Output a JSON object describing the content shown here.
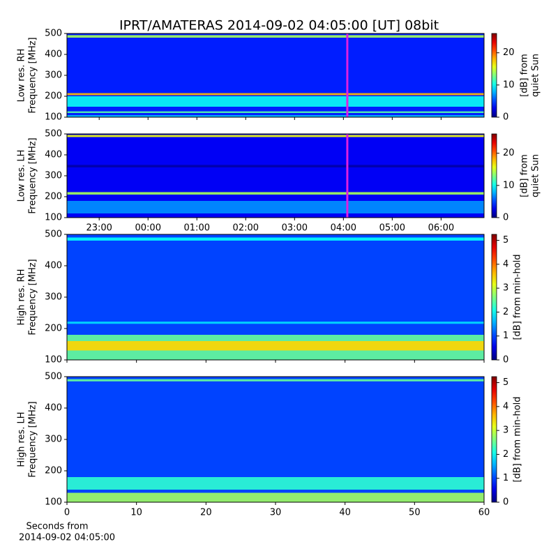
{
  "title": "IPRT/AMATERAS 2014-09-02 04:05:00 [UT]   08bit",
  "chart_data": [
    {
      "type": "spectrogram",
      "ylabel": [
        "Low res. RH",
        "Frequency [MHz]"
      ],
      "xlim": [
        22.34,
        30.88
      ],
      "xticks": [
        {
          "value": 23,
          "label": "23:00"
        },
        {
          "value": 24,
          "label": "00:00"
        },
        {
          "value": 25,
          "label": "01:00"
        },
        {
          "value": 26,
          "label": "02:00"
        },
        {
          "value": 27,
          "label": "03:00"
        },
        {
          "value": 28,
          "label": "04:00"
        },
        {
          "value": 29,
          "label": "05:00"
        },
        {
          "value": 30,
          "label": "06:00"
        }
      ],
      "xtick_labels": false,
      "ylim": [
        100,
        500
      ],
      "yticks": [
        100,
        200,
        300,
        400,
        500
      ],
      "clim": [
        0,
        26
      ],
      "cticks": [
        0,
        10,
        20
      ],
      "clabel": [
        "[dB] from",
        "quiet Sun"
      ],
      "colormap": "jet",
      "background": 4,
      "bands": [
        {
          "from": 100,
          "to": 110,
          "level": 8
        },
        {
          "from": 120,
          "to": 128,
          "level": 12
        },
        {
          "from": 150,
          "to": 200,
          "level": 10
        },
        {
          "from": 205,
          "to": 215,
          "level": 18
        },
        {
          "from": 480,
          "to": 492,
          "level": 14
        }
      ],
      "cursor": {
        "x": 28.08,
        "color": "#e020e0"
      }
    },
    {
      "type": "spectrogram",
      "ylabel": [
        "Low res. LH",
        "Frequency [MHz]"
      ],
      "xlim": [
        22.34,
        30.88
      ],
      "xticks": [
        {
          "value": 23,
          "label": "23:00"
        },
        {
          "value": 24,
          "label": "00:00"
        },
        {
          "value": 25,
          "label": "01:00"
        },
        {
          "value": 26,
          "label": "02:00"
        },
        {
          "value": 27,
          "label": "03:00"
        },
        {
          "value": 28,
          "label": "04:00"
        },
        {
          "value": 29,
          "label": "05:00"
        },
        {
          "value": 30,
          "label": "06:00"
        }
      ],
      "xtick_labels": true,
      "ylim": [
        100,
        500
      ],
      "yticks": [
        100,
        200,
        300,
        400,
        500
      ],
      "clim": [
        0,
        26
      ],
      "cticks": [
        0,
        10,
        20
      ],
      "clabel": [
        "[dB] from",
        "quiet Sun"
      ],
      "colormap": "jet",
      "background": 3,
      "bands": [
        {
          "from": 120,
          "to": 180,
          "level": 7
        },
        {
          "from": 210,
          "to": 222,
          "level": 14
        },
        {
          "from": 340,
          "to": 352,
          "level": 1
        },
        {
          "from": 485,
          "to": 495,
          "level": 16
        }
      ],
      "cursor": {
        "x": 28.08,
        "color": "#e020e0"
      }
    },
    {
      "type": "spectrogram",
      "ylabel": [
        "High res. RH",
        "Frequency [MHz]"
      ],
      "xlim": [
        0,
        60
      ],
      "xticks": [
        0,
        10,
        20,
        30,
        40,
        50,
        60
      ],
      "xtick_labels": false,
      "ylim": [
        100,
        500
      ],
      "yticks": [
        100,
        200,
        300,
        400,
        500
      ],
      "clim": [
        0,
        5.25
      ],
      "cticks": [
        0,
        1,
        2,
        3,
        4,
        5
      ],
      "clabel": [
        "[dB] from min-hold"
      ],
      "colormap": "jet",
      "background": 1,
      "bands": [
        {
          "from": 100,
          "to": 180,
          "level": 2.5
        },
        {
          "from": 130,
          "to": 160,
          "level": 3.5
        },
        {
          "from": 215,
          "to": 222,
          "level": 1.8
        },
        {
          "from": 480,
          "to": 490,
          "level": 2
        }
      ]
    },
    {
      "type": "spectrogram",
      "ylabel": [
        "High res. LH",
        "Frequency [MHz]"
      ],
      "xlim": [
        0,
        60
      ],
      "xticks": [
        0,
        10,
        20,
        30,
        40,
        50,
        60
      ],
      "xtick_labels": true,
      "xlabel": [
        "Seconds from",
        "2014-09-02 04:05:00"
      ],
      "ylim": [
        100,
        500
      ],
      "yticks": [
        100,
        200,
        300,
        400,
        500
      ],
      "clim": [
        0,
        5.25
      ],
      "cticks": [
        0,
        1,
        2,
        3,
        4,
        5
      ],
      "clabel": [
        "[dB] from min-hold"
      ],
      "colormap": "jet",
      "background": 1,
      "bands": [
        {
          "from": 100,
          "to": 130,
          "level": 2.8
        },
        {
          "from": 140,
          "to": 180,
          "level": 2.2
        },
        {
          "from": 485,
          "to": 492,
          "level": 2.5
        }
      ]
    }
  ]
}
